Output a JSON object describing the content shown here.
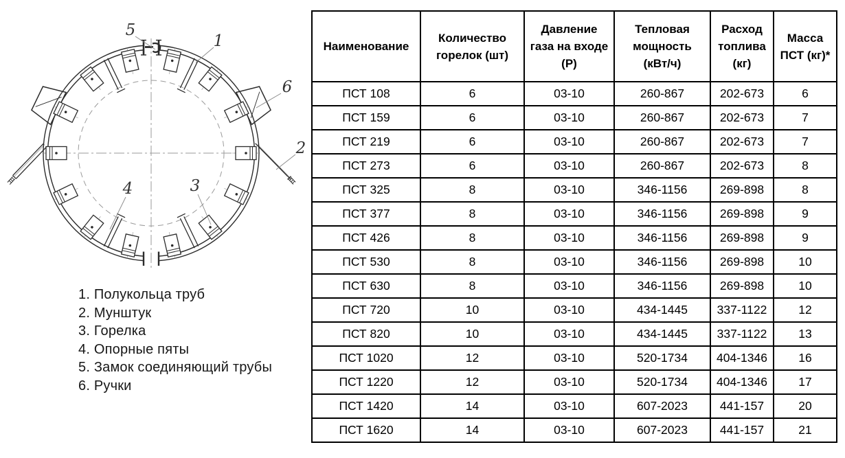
{
  "diagram": {
    "callouts": [
      "1",
      "2",
      "3",
      "4",
      "5",
      "6"
    ],
    "legend_items": [
      "1. Полукольца труб",
      "2. Мунштук",
      "3. Горелка",
      "4. Опорные пяты",
      "5. Замок соединяющий трубы",
      "6. Ручки"
    ]
  },
  "table": {
    "headers": [
      "Наименование",
      "Количество\nгорелок (шт)",
      "Давление\nгаза на входе\n(Р)",
      "Тепловая\nмощность\n(кВт/ч)",
      "Расход\nтоплива\n(кг)",
      "Масса\nПСТ (кг)*"
    ],
    "rows": [
      [
        "ПСТ 108",
        "6",
        "03-10",
        "260-867",
        "202-673",
        "6"
      ],
      [
        "ПСТ 159",
        "6",
        "03-10",
        "260-867",
        "202-673",
        "7"
      ],
      [
        "ПСТ 219",
        "6",
        "03-10",
        "260-867",
        "202-673",
        "7"
      ],
      [
        "ПСТ 273",
        "6",
        "03-10",
        "260-867",
        "202-673",
        "8"
      ],
      [
        "ПСТ 325",
        "8",
        "03-10",
        "346-1156",
        "269-898",
        "8"
      ],
      [
        "ПСТ 377",
        "8",
        "03-10",
        "346-1156",
        "269-898",
        "9"
      ],
      [
        "ПСТ 426",
        "8",
        "03-10",
        "346-1156",
        "269-898",
        "9"
      ],
      [
        "ПСТ 530",
        "8",
        "03-10",
        "346-1156",
        "269-898",
        "10"
      ],
      [
        "ПСТ 630",
        "8",
        "03-10",
        "346-1156",
        "269-898",
        "10"
      ],
      [
        "ПСТ 720",
        "10",
        "03-10",
        "434-1445",
        "337-1122",
        "12"
      ],
      [
        "ПСТ 820",
        "10",
        "03-10",
        "434-1445",
        "337-1122",
        "13"
      ],
      [
        "ПСТ 1020",
        "12",
        "03-10",
        "520-1734",
        "404-1346",
        "16"
      ],
      [
        "ПСТ 1220",
        "12",
        "03-10",
        "520-1734",
        "404-1346",
        "17"
      ],
      [
        "ПСТ 1420",
        "14",
        "03-10",
        "607-2023",
        "441-157",
        "20"
      ],
      [
        "ПСТ 1620",
        "14",
        "03-10",
        "607-2023",
        "441-157",
        "21"
      ]
    ]
  },
  "colors": {
    "line_art": "#2b2b2b",
    "construction_line": "#999999",
    "callout_leader": "#888888",
    "table_border": "#000000"
  }
}
